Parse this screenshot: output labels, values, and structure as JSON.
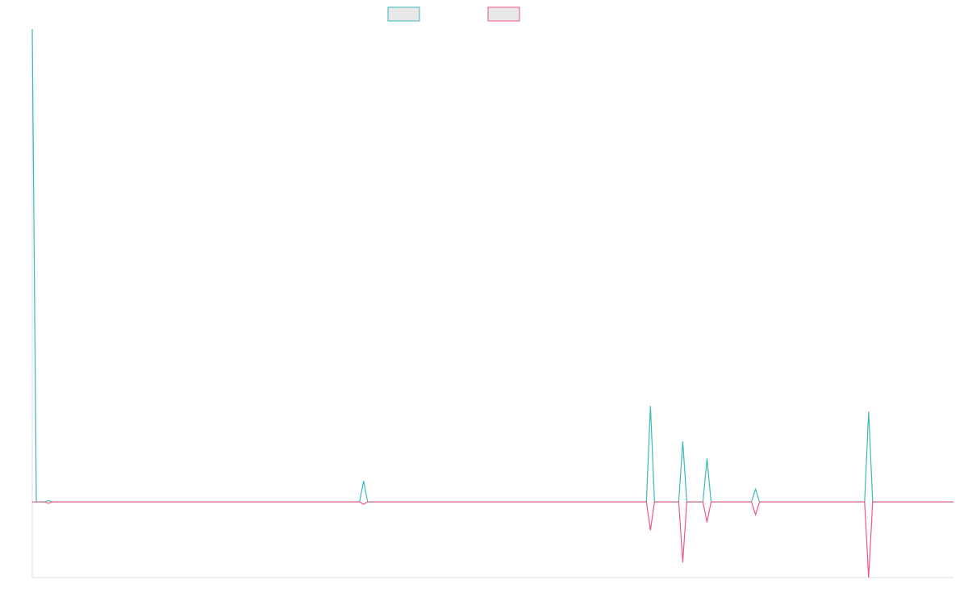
{
  "chart_data": {
    "type": "line",
    "x": [
      0,
      1,
      3,
      4,
      5,
      81,
      82,
      83,
      152,
      153,
      154,
      160,
      161,
      162,
      166,
      167,
      168,
      178,
      179,
      180,
      206,
      207,
      208,
      228
    ],
    "series": [
      {
        "color": "#3cb9b9",
        "values": [
          100,
          0,
          0,
          0.3,
          0,
          0,
          4.4,
          0,
          0,
          20.3,
          0,
          0,
          12.8,
          0,
          0,
          9.2,
          0,
          0,
          2.7,
          0,
          0,
          19.1,
          0,
          0
        ]
      },
      {
        "color": "#ec5a80",
        "values": [
          0,
          0,
          0,
          -0.3,
          0,
          0,
          -0.5,
          0,
          0,
          -6,
          0,
          0,
          -12.8,
          0,
          0,
          -4.3,
          0,
          0,
          -2.7,
          0,
          0,
          -16,
          0,
          0
        ]
      }
    ],
    "xlim": [
      0,
      228
    ],
    "ylim": [
      -16,
      100
    ]
  }
}
